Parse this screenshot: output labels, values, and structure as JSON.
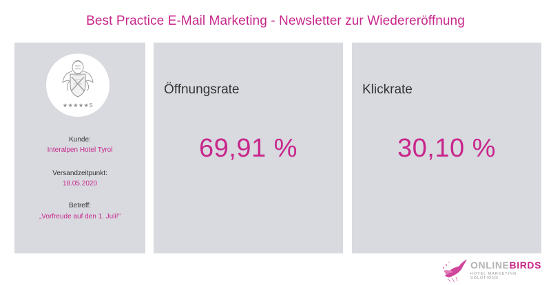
{
  "title": "Best Practice E-Mail Marketing - Newsletter zur Wiedereröffnung",
  "client_card": {
    "logo_stars": "★★★★★S",
    "kunde_label": "Kunde:",
    "kunde_value": "Interalpen Hotel Tyrol",
    "versand_label": "Versandzeitpunkt:",
    "versand_value": "18.05.2020",
    "betreff_label": "Betreff:",
    "betreff_value": "„Vorfreude auf den 1. Juli!\""
  },
  "metrics": [
    {
      "label": "Öffnungsrate",
      "value": "69,91 %"
    },
    {
      "label": "Klickrate",
      "value": "30,10 %"
    }
  ],
  "brand": {
    "name_part1": "ONLINE",
    "name_part2": "BIRDS",
    "tagline": "HOTEL MARKETING SOLUTIONS"
  },
  "colors": {
    "accent": "#c8268a",
    "panel": "#d8dae0",
    "text": "#333333"
  }
}
